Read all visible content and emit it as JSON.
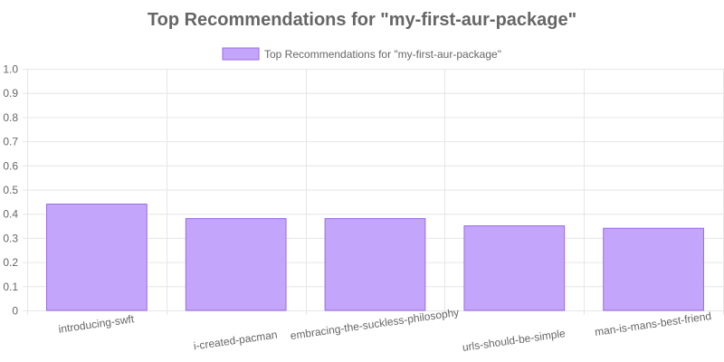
{
  "chart_data": {
    "type": "bar",
    "title": "Top Recommendations for \"my-first-aur-package\"",
    "categories": [
      "introducing-swft",
      "i-created-pacman",
      "embracing-the-suckless-philosophy",
      "urls-should-be-simple",
      "man-is-mans-best-friend"
    ],
    "series": [
      {
        "name": "Top Recommendations for \"my-first-aur-package\"",
        "values": [
          0.44,
          0.38,
          0.38,
          0.35,
          0.34
        ]
      }
    ],
    "xlabel": "",
    "ylabel": "",
    "ylim": [
      0,
      1.0
    ],
    "yticks": [
      "0",
      "0.1",
      "0.2",
      "0.3",
      "0.4",
      "0.5",
      "0.6",
      "0.7",
      "0.8",
      "0.9",
      "1.0"
    ],
    "grid": true,
    "legend": "top-center",
    "colors": {
      "bar_fill": "#c4a5fc",
      "bar_stroke": "#9a6be0",
      "grid": "#e6e6e6",
      "text": "#666666"
    }
  }
}
